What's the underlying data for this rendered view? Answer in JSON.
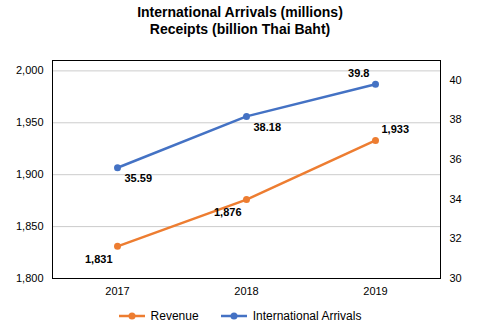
{
  "chart_data": {
    "type": "line",
    "title": "International Arrivals (millions)",
    "subtitle": "Receipts (billion Thai Baht)",
    "categories": [
      "2017",
      "2018",
      "2019"
    ],
    "series": [
      {
        "name": "Revenue",
        "color": "#ED7D31",
        "values": [
          1831,
          1876,
          1933
        ],
        "value_labels": [
          "1,831",
          "1,876",
          "1,933"
        ],
        "marker": "circle"
      },
      {
        "name": "International Arrivals",
        "color": "#4472C4",
        "values": [
          35.59,
          38.18,
          39.8
        ],
        "axis": "y2",
        "marker": "circle"
      }
    ],
    "ylim": [
      1800,
      2010
    ],
    "yticks": [
      {
        "value": 1800,
        "label": "1,800"
      },
      {
        "value": 1850,
        "label": "1,850"
      },
      {
        "value": 1900,
        "label": "1,900"
      },
      {
        "value": 1950,
        "label": "1,950"
      },
      {
        "value": 2000,
        "label": "2,000"
      }
    ],
    "y2lim": [
      30,
      41
    ],
    "y2ticks": [
      30,
      32,
      34,
      36,
      38,
      40
    ],
    "grid": true,
    "legend": "bottom",
    "data_labels": true
  }
}
